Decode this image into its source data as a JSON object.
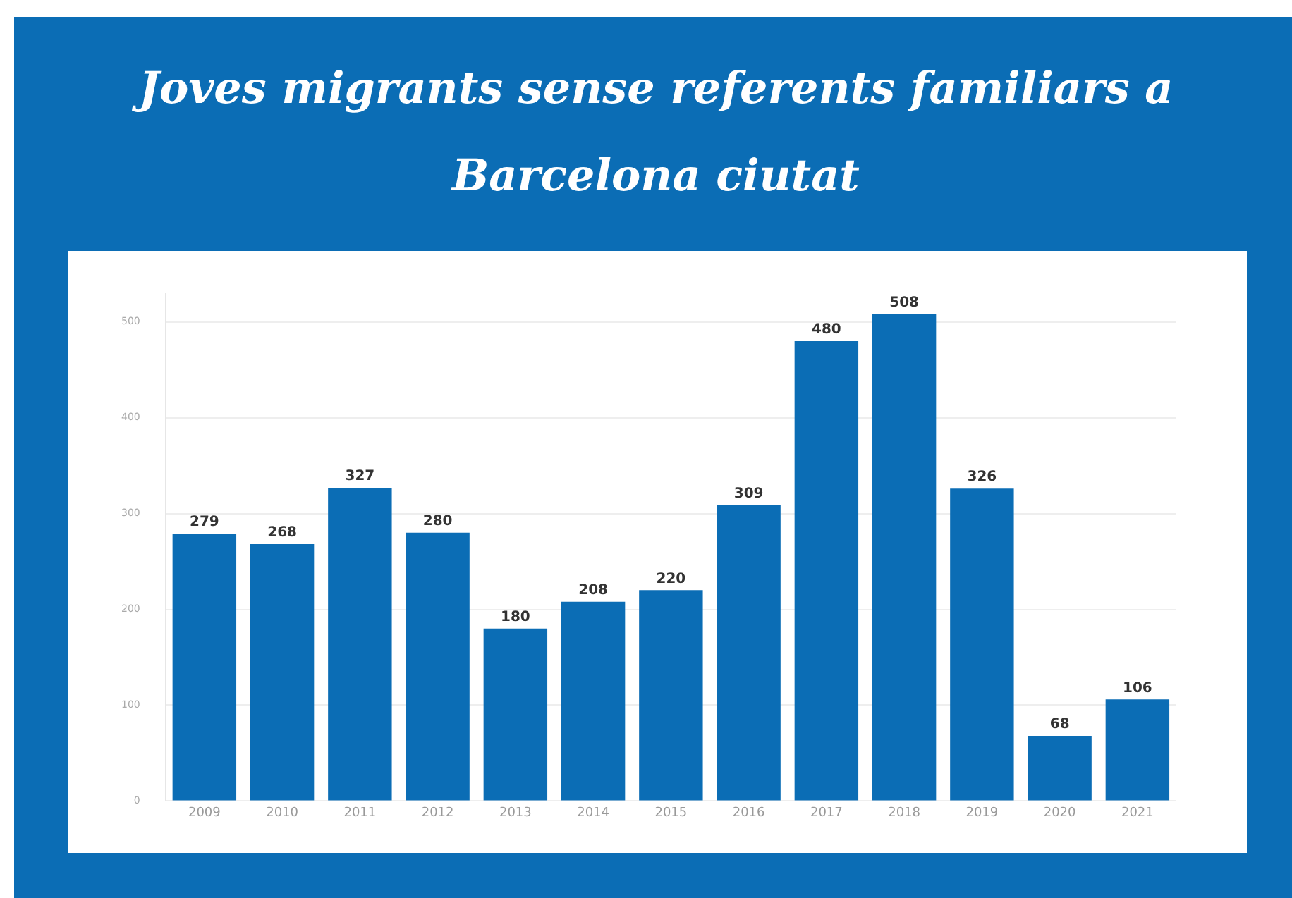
{
  "chart_data": {
    "type": "bar",
    "title": "Joves migrants sense referents familiars a Barcelona ciutat",
    "categories": [
      "2009",
      "2010",
      "2011",
      "2012",
      "2013",
      "2014",
      "2015",
      "2016",
      "2017",
      "2018",
      "2019",
      "2020",
      "2021"
    ],
    "values": [
      279,
      268,
      327,
      280,
      180,
      208,
      220,
      309,
      480,
      508,
      326,
      68,
      106
    ],
    "color": "#0b6db5",
    "ylim": [
      0,
      530
    ],
    "yticks": [
      0,
      100,
      200,
      300,
      400,
      500
    ],
    "grid": "y",
    "data_labels": true
  }
}
